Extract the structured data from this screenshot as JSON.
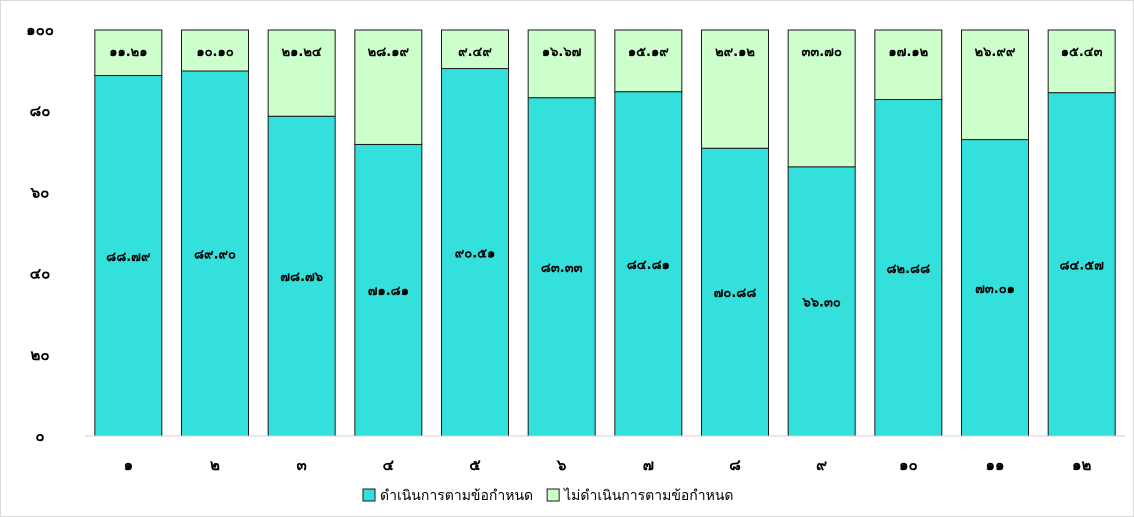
{
  "chart_data": {
    "type": "bar",
    "stacked": true,
    "categories": [
      "๑",
      "๒",
      "๓",
      "๔",
      "๕",
      "๖",
      "๗",
      "๘",
      "๙",
      "๑๐",
      "๑๑",
      "๑๒"
    ],
    "series": [
      {
        "name": "ดำเนินการตามข้อกำหนด",
        "color": "#33e0dc",
        "values": [
          88.79,
          89.9,
          78.76,
          71.81,
          90.51,
          83.33,
          84.81,
          70.88,
          66.3,
          82.88,
          73.01,
          84.57
        ],
        "labels": [
          "๘๘.๗๙",
          "๘๙.๙๐",
          "๗๘.๗๖",
          "๗๑.๘๑",
          "๙๐.๕๑",
          "๘๓.๓๓",
          "๘๔.๘๑",
          "๗๐.๘๘",
          "๖๖.๓๐",
          "๘๒.๘๘",
          "๗๓.๐๑",
          "๘๔.๕๗"
        ]
      },
      {
        "name": "ไม่ดำเนินการตามข้อกำหนด",
        "color": "#ccffcc",
        "values": [
          11.21,
          10.1,
          21.24,
          28.19,
          9.49,
          16.67,
          15.19,
          29.12,
          33.7,
          17.12,
          26.99,
          15.43
        ],
        "labels": [
          "๑๑.๒๑",
          "๑๐.๑๐",
          "๒๑.๒๔",
          "๒๘.๑๙",
          "๙.๔๙",
          "๑๖.๖๗",
          "๑๕.๑๙",
          "๒๙.๑๒",
          "๓๓.๗๐",
          "๑๗.๑๒",
          "๒๖.๙๙",
          "๑๕.๔๓"
        ]
      }
    ],
    "ylim": [
      0,
      100
    ],
    "yticks": [
      0,
      20,
      40,
      60,
      80,
      100
    ],
    "ytick_labels": [
      "๐",
      "๒๐",
      "๔๐",
      "๖๐",
      "๘๐",
      "๑๐๐"
    ],
    "title": "",
    "xlabel": "",
    "ylabel": "",
    "grid": false,
    "legend": "bottom"
  }
}
